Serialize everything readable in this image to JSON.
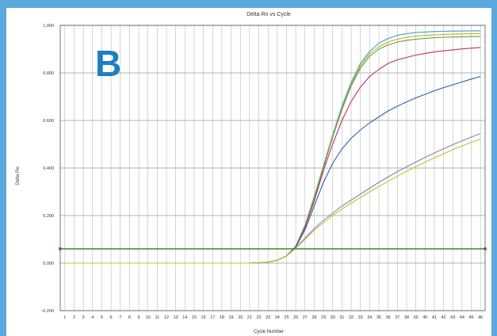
{
  "panel_label": "B",
  "chart_data": {
    "type": "line",
    "title": "Delta Rn vs Cycle",
    "xlabel": "Cycle Number",
    "ylabel": "Delta Rn",
    "xlim": [
      0.5,
      46.5
    ],
    "ylim": [
      -0.2,
      1.0
    ],
    "x_ticks": [
      1,
      2,
      3,
      4,
      5,
      6,
      7,
      8,
      9,
      10,
      11,
      12,
      13,
      14,
      15,
      16,
      17,
      18,
      19,
      20,
      21,
      22,
      23,
      24,
      25,
      26,
      27,
      28,
      29,
      30,
      31,
      32,
      33,
      34,
      35,
      36,
      37,
      38,
      39,
      40,
      41,
      42,
      43,
      44,
      45,
      46
    ],
    "y_ticks": [
      {
        "value": -0.2,
        "label": "-0.200"
      },
      {
        "value": 0.0,
        "label": "0.000"
      },
      {
        "value": 0.2,
        "label": "0.200"
      },
      {
        "value": 0.4,
        "label": "0.400"
      },
      {
        "value": 0.6,
        "label": "0.600"
      },
      {
        "value": 0.8,
        "label": "0.800"
      },
      {
        "value": 1.0,
        "label": "1.000"
      }
    ],
    "grid": true,
    "threshold": {
      "value": 0.06,
      "color": "#3c8a2a"
    },
    "series": [
      {
        "color": "#3aa0c8",
        "values": [
          0,
          0,
          0,
          0,
          0,
          0,
          0,
          0,
          0,
          0,
          0,
          0,
          0,
          0,
          0,
          0,
          0,
          0,
          0,
          0,
          0,
          0.001,
          0.004,
          0.012,
          0.03,
          0.07,
          0.16,
          0.28,
          0.41,
          0.54,
          0.66,
          0.76,
          0.84,
          0.89,
          0.925,
          0.945,
          0.958,
          0.965,
          0.97,
          0.972,
          0.974,
          0.975,
          0.976,
          0.976,
          0.977,
          0.977
        ]
      },
      {
        "color": "#b8b020",
        "values": [
          0,
          0,
          0,
          0,
          0,
          0,
          0,
          0,
          0,
          0,
          0,
          0,
          0,
          0,
          0,
          0,
          0,
          0,
          0,
          0,
          0,
          0.001,
          0.004,
          0.012,
          0.03,
          0.07,
          0.155,
          0.275,
          0.405,
          0.535,
          0.65,
          0.75,
          0.83,
          0.88,
          0.91,
          0.93,
          0.942,
          0.95,
          0.955,
          0.958,
          0.96,
          0.962,
          0.963,
          0.964,
          0.965,
          0.965
        ]
      },
      {
        "color": "#6f9a3a",
        "values": [
          0,
          0,
          0,
          0,
          0,
          0,
          0,
          0,
          0,
          0,
          0,
          0,
          0,
          0,
          0,
          0,
          0,
          0,
          0,
          0,
          0,
          0.001,
          0.004,
          0.012,
          0.03,
          0.07,
          0.15,
          0.27,
          0.4,
          0.53,
          0.645,
          0.745,
          0.82,
          0.87,
          0.9,
          0.918,
          0.93,
          0.937,
          0.942,
          0.945,
          0.948,
          0.95,
          0.951,
          0.952,
          0.953,
          0.953
        ]
      },
      {
        "color": "#c0306a",
        "values": [
          0,
          0,
          0,
          0,
          0,
          0,
          0,
          0,
          0,
          0,
          0,
          0,
          0,
          0,
          0,
          0,
          0,
          0,
          0,
          0,
          0,
          0.001,
          0.004,
          0.012,
          0.03,
          0.07,
          0.15,
          0.26,
          0.39,
          0.5,
          0.6,
          0.68,
          0.74,
          0.785,
          0.815,
          0.84,
          0.855,
          0.865,
          0.875,
          0.882,
          0.888,
          0.893,
          0.897,
          0.901,
          0.904,
          0.907
        ]
      },
      {
        "color": "#2d5fa8",
        "values": [
          0,
          0,
          0,
          0,
          0,
          0,
          0,
          0,
          0,
          0,
          0,
          0,
          0,
          0,
          0,
          0,
          0,
          0,
          0,
          0,
          0,
          0.001,
          0.004,
          0.012,
          0.03,
          0.068,
          0.14,
          0.24,
          0.34,
          0.42,
          0.48,
          0.525,
          0.56,
          0.59,
          0.615,
          0.64,
          0.66,
          0.678,
          0.695,
          0.71,
          0.725,
          0.738,
          0.75,
          0.762,
          0.774,
          0.785
        ]
      },
      {
        "color": "#8a7cc0",
        "values": [
          0,
          0,
          0,
          0,
          0,
          0,
          0,
          0,
          0,
          0,
          0,
          0,
          0,
          0,
          0,
          0,
          0,
          0,
          0,
          0,
          0,
          0.001,
          0.004,
          0.012,
          0.03,
          0.065,
          0.105,
          0.145,
          0.18,
          0.21,
          0.24,
          0.265,
          0.29,
          0.315,
          0.34,
          0.362,
          0.385,
          0.405,
          0.425,
          0.445,
          0.463,
          0.481,
          0.498,
          0.514,
          0.53,
          0.545
        ]
      },
      {
        "color": "#c8c020",
        "values": [
          0,
          0,
          0,
          0,
          0,
          0,
          0,
          0,
          0,
          0,
          0,
          0,
          0,
          0,
          0,
          0,
          0,
          0,
          0,
          0,
          0,
          0.001,
          0.004,
          0.012,
          0.03,
          0.062,
          0.1,
          0.138,
          0.17,
          0.2,
          0.228,
          0.252,
          0.276,
          0.3,
          0.322,
          0.344,
          0.366,
          0.386,
          0.406,
          0.425,
          0.443,
          0.46,
          0.477,
          0.493,
          0.508,
          0.522
        ]
      }
    ]
  }
}
